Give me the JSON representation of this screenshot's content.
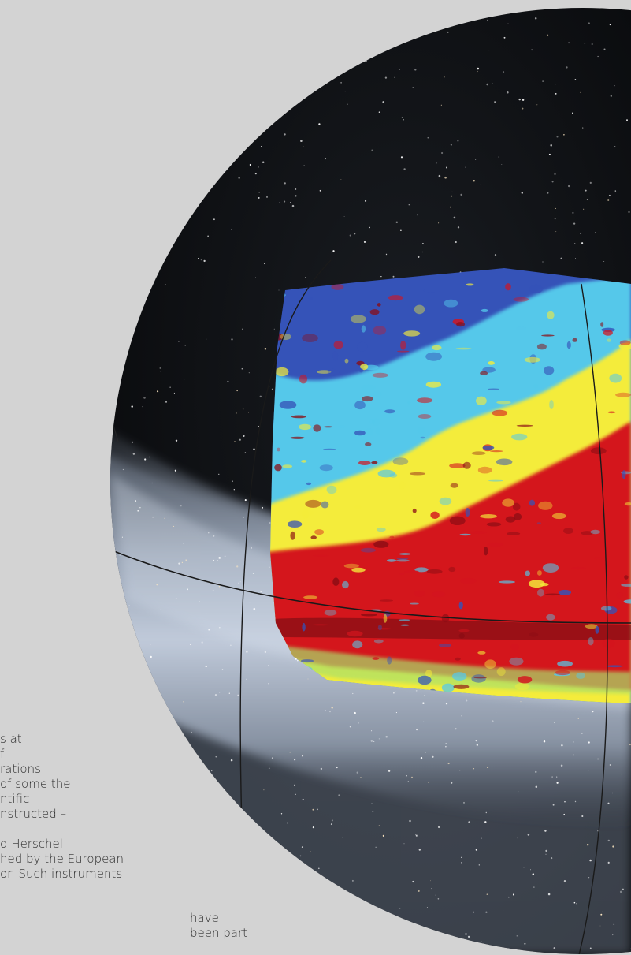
{
  "image": {
    "subject": "celestial-sphere-all-sky-map",
    "overlay": "false-color-dust-emission-map",
    "colors": {
      "page_background": "#d3d3d3",
      "sky_dark": "#0d0f12",
      "milky_way": "#b8c4d6",
      "map_blue": "#3553b8",
      "map_cyan": "#54c8ea",
      "map_yellow": "#f4ec3a",
      "map_red": "#d4141e"
    }
  },
  "left_column_lines": [
    "s at",
    "f",
    "rations",
    "of some the",
    "ntific",
    "nstructed –",
    "",
    "d Herschel",
    "hed by the European",
    "or. Such instruments"
  ],
  "right_column_lines": [
    "have",
    "been part"
  ]
}
